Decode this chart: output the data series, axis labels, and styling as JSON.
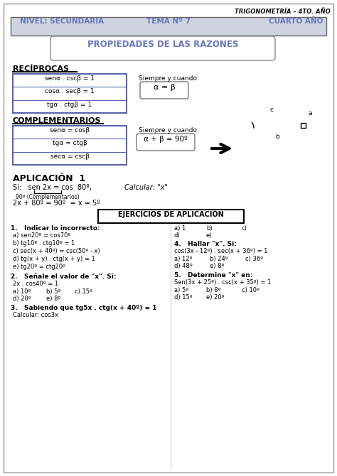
{
  "title_header": "TRIGONOMETRÍA – 4TO. AÑO",
  "header_fields": [
    "NIVEL: SECUNDARIA",
    "TEMA Nº 7",
    "CUARTO AÑO"
  ],
  "main_title": "PROPIEDADES DE LAS RAZONES",
  "section1_title": "RECÍPROCAS",
  "reciprocas": [
    "senα . cscβ = 1",
    "cosα . secβ = 1",
    "tgα . ctgβ = 1"
  ],
  "reciprocas_cond": "Siempre y cuando:",
  "reciprocas_box": "α = β",
  "section2_title": "COMPLEMENTARIOS",
  "complementarios": [
    "senα = cosβ",
    "tgα = ctgβ",
    "secα = cscβ"
  ],
  "comp_cond": "Siempre y cuando:",
  "comp_box": "α + β = 90º",
  "aplicacion_title": "APLICACIÓN  1",
  "aplicacion_si": "Si:   sen 2x = cos  80º,",
  "aplicacion_calcular": "Calcular: \"x\"",
  "aplicacion_note": "90º (Complementarios)",
  "aplicacion_sol": "2x + 80º = 90º  = x = 5º",
  "ejercicios_title": "EJERCICIOS DE APLICACIÓN",
  "ex1_title": "1.   Indicar lo incorrecto:",
  "ex1_items": [
    "a) sen20º = cos70º",
    "b) tg10º . ctg10º = 1",
    "c) sec(x + 40º) = csc(50º - x)",
    "d) tg(x + y) . ctg(x + y) = 1",
    "e) tg20º = ctg20º"
  ],
  "ex2_title": "2.   Señale el valor de \"x\". Si:",
  "ex2_cond": "2x . cos40º = 1",
  "ex2_opts": [
    "a) 10º",
    "b) 5º",
    "c) 15º",
    "d) 20º",
    "e) 8º"
  ],
  "ex3_title": "3.   Sabiendo que tg5x . ctg(x + 40º) = 1",
  "ex3_sub": "Calcular: cos3x",
  "ex4_title": "4.   Hallar \"x\". Si:",
  "ex4_cond": "cos(3x - 12º) . sec(x + 36º) = 1",
  "ex4_right_labels": [
    "a) 1",
    "b)",
    "c)",
    "d)",
    "e)"
  ],
  "ex4_opts": [
    "a) 12º",
    "b) 24º",
    "c) 36º",
    "d) 48º",
    "e) 8º"
  ],
  "ex5_title": "5.   Determine \"x\" en:",
  "ex5_cond": "Sen(3x + 25º) . csc(x + 35º) = 1",
  "ex5_opts": [
    "a) 5º",
    "b) 8º",
    "c) 10º",
    "d) 15º",
    "e) 20º"
  ],
  "bg_color": "#ffffff",
  "header_bg": "#d0d4e0",
  "box_border": "#5566aa",
  "title_color": "#6677bb",
  "shadow_color": "#aaaaaa"
}
